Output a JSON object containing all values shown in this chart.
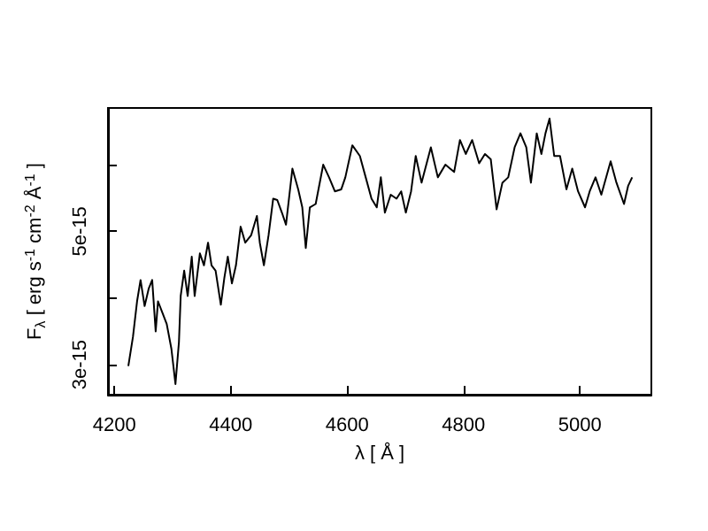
{
  "chart_data": {
    "type": "line",
    "xlabel": "λ [ Å ]",
    "ylabel": "F$_{λ}$ [ erg s$^{-1}$ cm$^{-2}$ Å$^{-1}$ ]",
    "xlim": [
      4189,
      5123
    ],
    "xticks": [
      4200,
      4400,
      4600,
      4800,
      5000
    ],
    "ylim": [
      2.55e-15,
      6.85e-15
    ],
    "yticks": [
      3e-15,
      {
        "value": 4e-15,
        "label": null
      },
      5e-15,
      {
        "value": 6e-15,
        "label": null
      }
    ],
    "grid": false,
    "marker": "none",
    "line_style": "solid",
    "series": [
      {
        "color": "#000000",
        "x": [
          4224,
          4232,
          4239,
          4245,
          4252,
          4259,
          4265,
          4271,
          4275,
          4283,
          4290,
          4298,
          4305,
          4311,
          4314,
          4320,
          4326,
          4333,
          4338,
          4347,
          4354,
          4361,
          4367,
          4374,
          4383,
          4389,
          4395,
          4402,
          4409,
          4417,
          4425,
          4435,
          4445,
          4450,
          4457,
          4465,
          4473,
          4480,
          4488,
          4495,
          4506,
          4516,
          4523,
          4529,
          4536,
          4546,
          4559,
          4569,
          4579,
          4590,
          4597,
          4609,
          4622,
          4632,
          4642,
          4651,
          4658,
          4665,
          4675,
          4685,
          4693,
          4701,
          4710,
          4718,
          4728,
          4744,
          4756,
          4769,
          4784,
          4794,
          4804,
          4815,
          4827,
          4837,
          4847,
          4857,
          4867,
          4877,
          4888,
          4898,
          4908,
          4916,
          4926,
          4934,
          4941,
          4948,
          4956,
          4966,
          4977,
          4987,
          4997,
          5009,
          5017,
          5027,
          5037,
          5053,
          5063,
          5076,
          5083,
          5090
        ],
        "values": [
          2.98e-15,
          3.42e-15,
          3.95e-15,
          4.27e-15,
          3.88e-15,
          4.14e-15,
          4.27e-15,
          3.5e-15,
          3.95e-15,
          3.77e-15,
          3.61e-15,
          3.24e-15,
          2.71e-15,
          3.34e-15,
          4.03e-15,
          4.41e-15,
          4.03e-15,
          4.62e-15,
          4.03e-15,
          4.67e-15,
          4.49e-15,
          4.83e-15,
          4.49e-15,
          4.41e-15,
          3.9e-15,
          4.3e-15,
          4.62e-15,
          4.22e-15,
          4.49e-15,
          5.07e-15,
          4.83e-15,
          4.94e-15,
          5.23e-15,
          4.83e-15,
          4.49e-15,
          4.94e-15,
          5.49e-15,
          5.47e-15,
          5.28e-15,
          5.1e-15,
          5.94e-15,
          5.63e-15,
          5.36e-15,
          4.75e-15,
          5.36e-15,
          5.41e-15,
          6e-15,
          5.81e-15,
          5.6e-15,
          5.63e-15,
          5.81e-15,
          6.29e-15,
          6.13e-15,
          5.81e-15,
          5.49e-15,
          5.36e-15,
          5.81e-15,
          5.28e-15,
          5.55e-15,
          5.49e-15,
          5.6e-15,
          5.28e-15,
          5.6e-15,
          6.13e-15,
          5.73e-15,
          6.26e-15,
          5.81e-15,
          6e-15,
          5.89e-15,
          6.37e-15,
          6.16e-15,
          6.37e-15,
          6.02e-15,
          6.16e-15,
          6.08e-15,
          5.33e-15,
          5.73e-15,
          5.81e-15,
          6.26e-15,
          6.47e-15,
          6.26e-15,
          5.73e-15,
          6.47e-15,
          6.16e-15,
          6.47e-15,
          6.69e-15,
          6.13e-15,
          6.13e-15,
          5.63e-15,
          5.94e-15,
          5.6e-15,
          5.36e-15,
          5.6e-15,
          5.81e-15,
          5.55e-15,
          6.05e-15,
          5.73e-15,
          5.41e-15,
          5.68e-15,
          5.81e-15
        ]
      }
    ]
  }
}
